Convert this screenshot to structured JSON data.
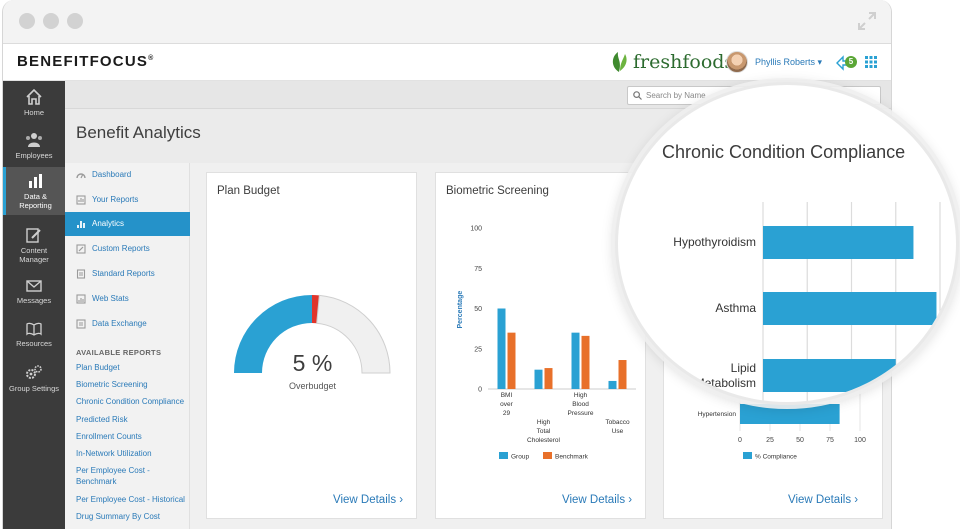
{
  "header": {
    "logo": "BENEFITFOCUS",
    "logo_mark": "®",
    "brand": "freshfoods",
    "user": "Phyllis Roberts",
    "notification_count": "5"
  },
  "leftnav": {
    "items": [
      {
        "label": "Home",
        "icon": "home-icon"
      },
      {
        "label": "Employees",
        "icon": "people-icon"
      },
      {
        "label": "Data &\nReporting",
        "icon": "bar-chart-icon",
        "active": true
      },
      {
        "label": "Content\nManager",
        "icon": "edit-icon"
      },
      {
        "label": "Messages",
        "icon": "envelope-icon"
      },
      {
        "label": "Resources",
        "icon": "book-icon"
      },
      {
        "label": "Group Settings",
        "icon": "gears-icon"
      }
    ]
  },
  "search": {
    "placeholder": "Search by Name"
  },
  "page": {
    "title": "Benefit Analytics"
  },
  "subnav": {
    "items": [
      {
        "label": "Dashboard"
      },
      {
        "label": "Your Reports"
      },
      {
        "label": "Analytics",
        "active": true
      },
      {
        "label": "Custom Reports"
      },
      {
        "label": "Standard Reports"
      },
      {
        "label": "Web Stats"
      },
      {
        "label": "Data Exchange"
      }
    ],
    "available_heading": "AVAILABLE REPORTS",
    "reports": [
      "Plan Budget",
      "Biometric Screening",
      "Chronic Condition Compliance",
      "Predicted Risk",
      "Enrollment Counts",
      "In-Network Utilization",
      "Per Employee Cost - Benchmark",
      "Per Employee Cost - Historical",
      "Drug Summary By Cost"
    ]
  },
  "cards": {
    "plan_budget": {
      "title": "Plan Budget",
      "value_label": "5 %",
      "caption": "Overbudget",
      "view": "View Details"
    },
    "biometric": {
      "title": "Biometric Screening",
      "view": "View Details"
    },
    "chronic": {
      "view": "View Details"
    }
  },
  "lens": {
    "title": "Chronic Condition Compliance"
  },
  "colors": {
    "blue": "#2aa1d3",
    "orange": "#e8702a",
    "red": "#e0352b",
    "grey_arc": "#f0f0f0"
  },
  "chart_data": [
    {
      "type": "gauge",
      "title": "Plan Budget",
      "value_percent": 5,
      "caption": "Overbudget",
      "segments": [
        {
          "name": "budget used",
          "fraction": 0.5
        },
        {
          "name": "over budget",
          "fraction": 0.03
        },
        {
          "name": "remaining",
          "fraction": 0.47
        }
      ]
    },
    {
      "type": "bar",
      "title": "Biometric Screening",
      "ylabel": "Percentage",
      "ylim": [
        0,
        100
      ],
      "yticks": [
        0,
        25,
        50,
        75,
        100
      ],
      "categories": [
        [
          "BMI",
          "over",
          "29"
        ],
        [
          "High",
          "Total",
          "Cholesterol"
        ],
        [
          "High",
          "Blood",
          "Pressure"
        ],
        [
          "Tobacco",
          "Use"
        ]
      ],
      "series": [
        {
          "name": "Group",
          "color": "#2aa1d3",
          "values": [
            50,
            12,
            35,
            5
          ]
        },
        {
          "name": "Benchmark",
          "color": "#e8702a",
          "values": [
            35,
            13,
            33,
            18
          ]
        }
      ],
      "legend": "bottom"
    },
    {
      "type": "bar",
      "orientation": "horizontal",
      "title": "Chronic Condition Compliance",
      "categories": [
        "Hypothyroidism",
        "Asthma",
        "Lipid Metabolism",
        "Hypertension"
      ],
      "series": [
        {
          "name": "% Compliance",
          "color": "#2aa1d3",
          "values": [
            85,
            98,
            75,
            83
          ]
        }
      ],
      "xlim": [
        0,
        100
      ],
      "xticks": [
        0,
        25,
        50,
        75,
        100
      ],
      "legend": "bottom"
    }
  ]
}
